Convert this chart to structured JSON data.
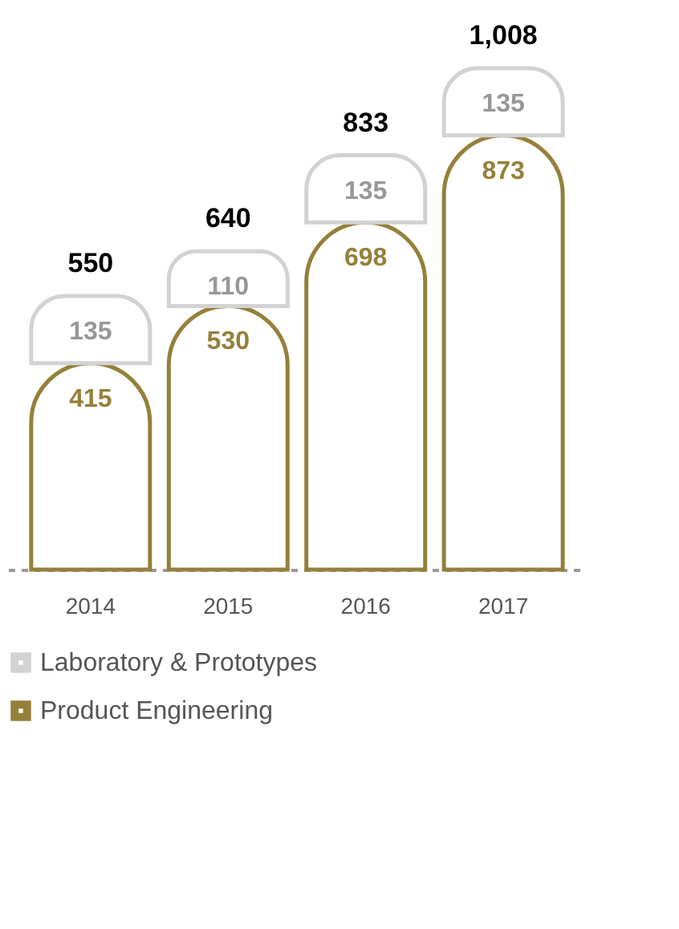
{
  "chart_data": {
    "type": "bar",
    "stacked": true,
    "data_labels": true,
    "legend": "bottom left",
    "grid": false,
    "categories": [
      "2014",
      "2015",
      "2016",
      "2017"
    ],
    "series": [
      {
        "name": "Product Engineering",
        "color": "#95803a",
        "values": [
          415,
          530,
          698,
          873
        ]
      },
      {
        "name": "Laboratory & Prototypes",
        "color": "#d2d2d2",
        "values": [
          135,
          110,
          135,
          135
        ]
      }
    ],
    "totals": [
      "550",
      "640",
      "833",
      "1,008"
    ]
  }
}
